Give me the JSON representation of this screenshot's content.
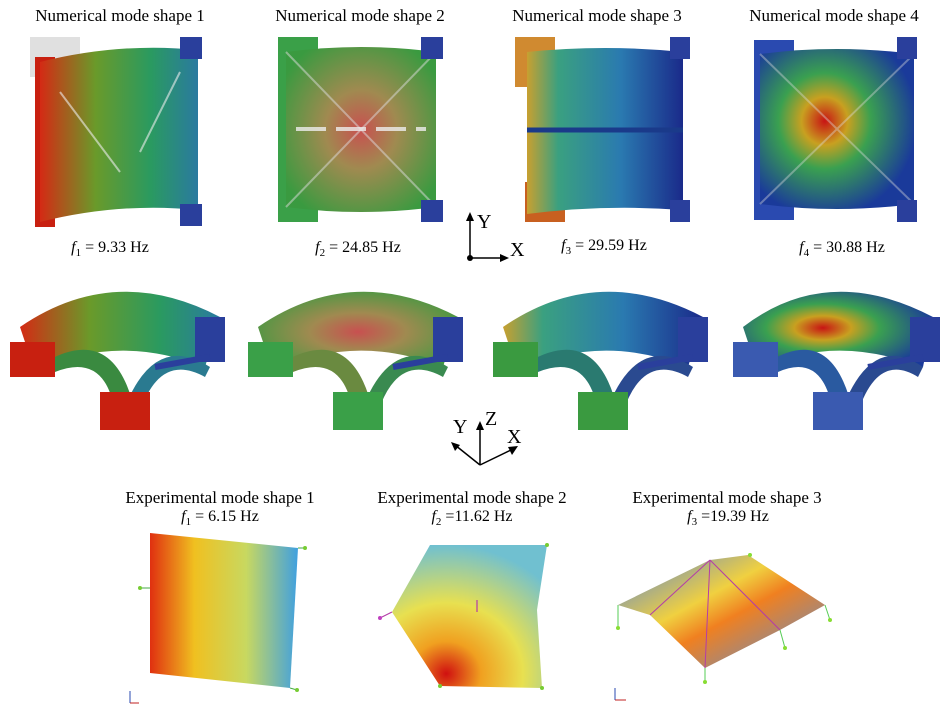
{
  "numerical": [
    {
      "title": "Numerical mode shape 1",
      "freq_symbol": "f",
      "freq_index": "1",
      "freq_value": " = 9.33 Hz"
    },
    {
      "title": "Numerical mode shape 2",
      "freq_symbol": "f",
      "freq_index": "2",
      "freq_value": " = 24.85 Hz"
    },
    {
      "title": "Numerical mode shape 3",
      "freq_symbol": "f",
      "freq_index": "3",
      "freq_value": " = 29.59 Hz"
    },
    {
      "title": "Numerical mode shape 4",
      "freq_symbol": "f",
      "freq_index": "4",
      "freq_value": " = 30.88 Hz"
    }
  ],
  "experimental": [
    {
      "title": "Experimental  mode shape 1",
      "freq_symbol": "f",
      "freq_index": "1",
      "freq_value": " = 6.15 Hz"
    },
    {
      "title": "Experimental  mode shape 2",
      "freq_symbol": "f",
      "freq_index": "2",
      "freq_value": " =11.62 Hz"
    },
    {
      "title": "Experimental  mode shape 3",
      "freq_symbol": "f",
      "freq_index": "3",
      "freq_value": " =19.39 Hz"
    }
  ],
  "axes_top": {
    "y": "Y",
    "x": "X"
  },
  "axes_mid": {
    "y": "Y",
    "z": "Z",
    "x": "X"
  },
  "colors": {
    "red": "#d42a14",
    "yellow": "#e8d640",
    "green": "#3aa048",
    "blue": "#2a3f9c",
    "mesh_shadow": "#d8d8d8"
  }
}
